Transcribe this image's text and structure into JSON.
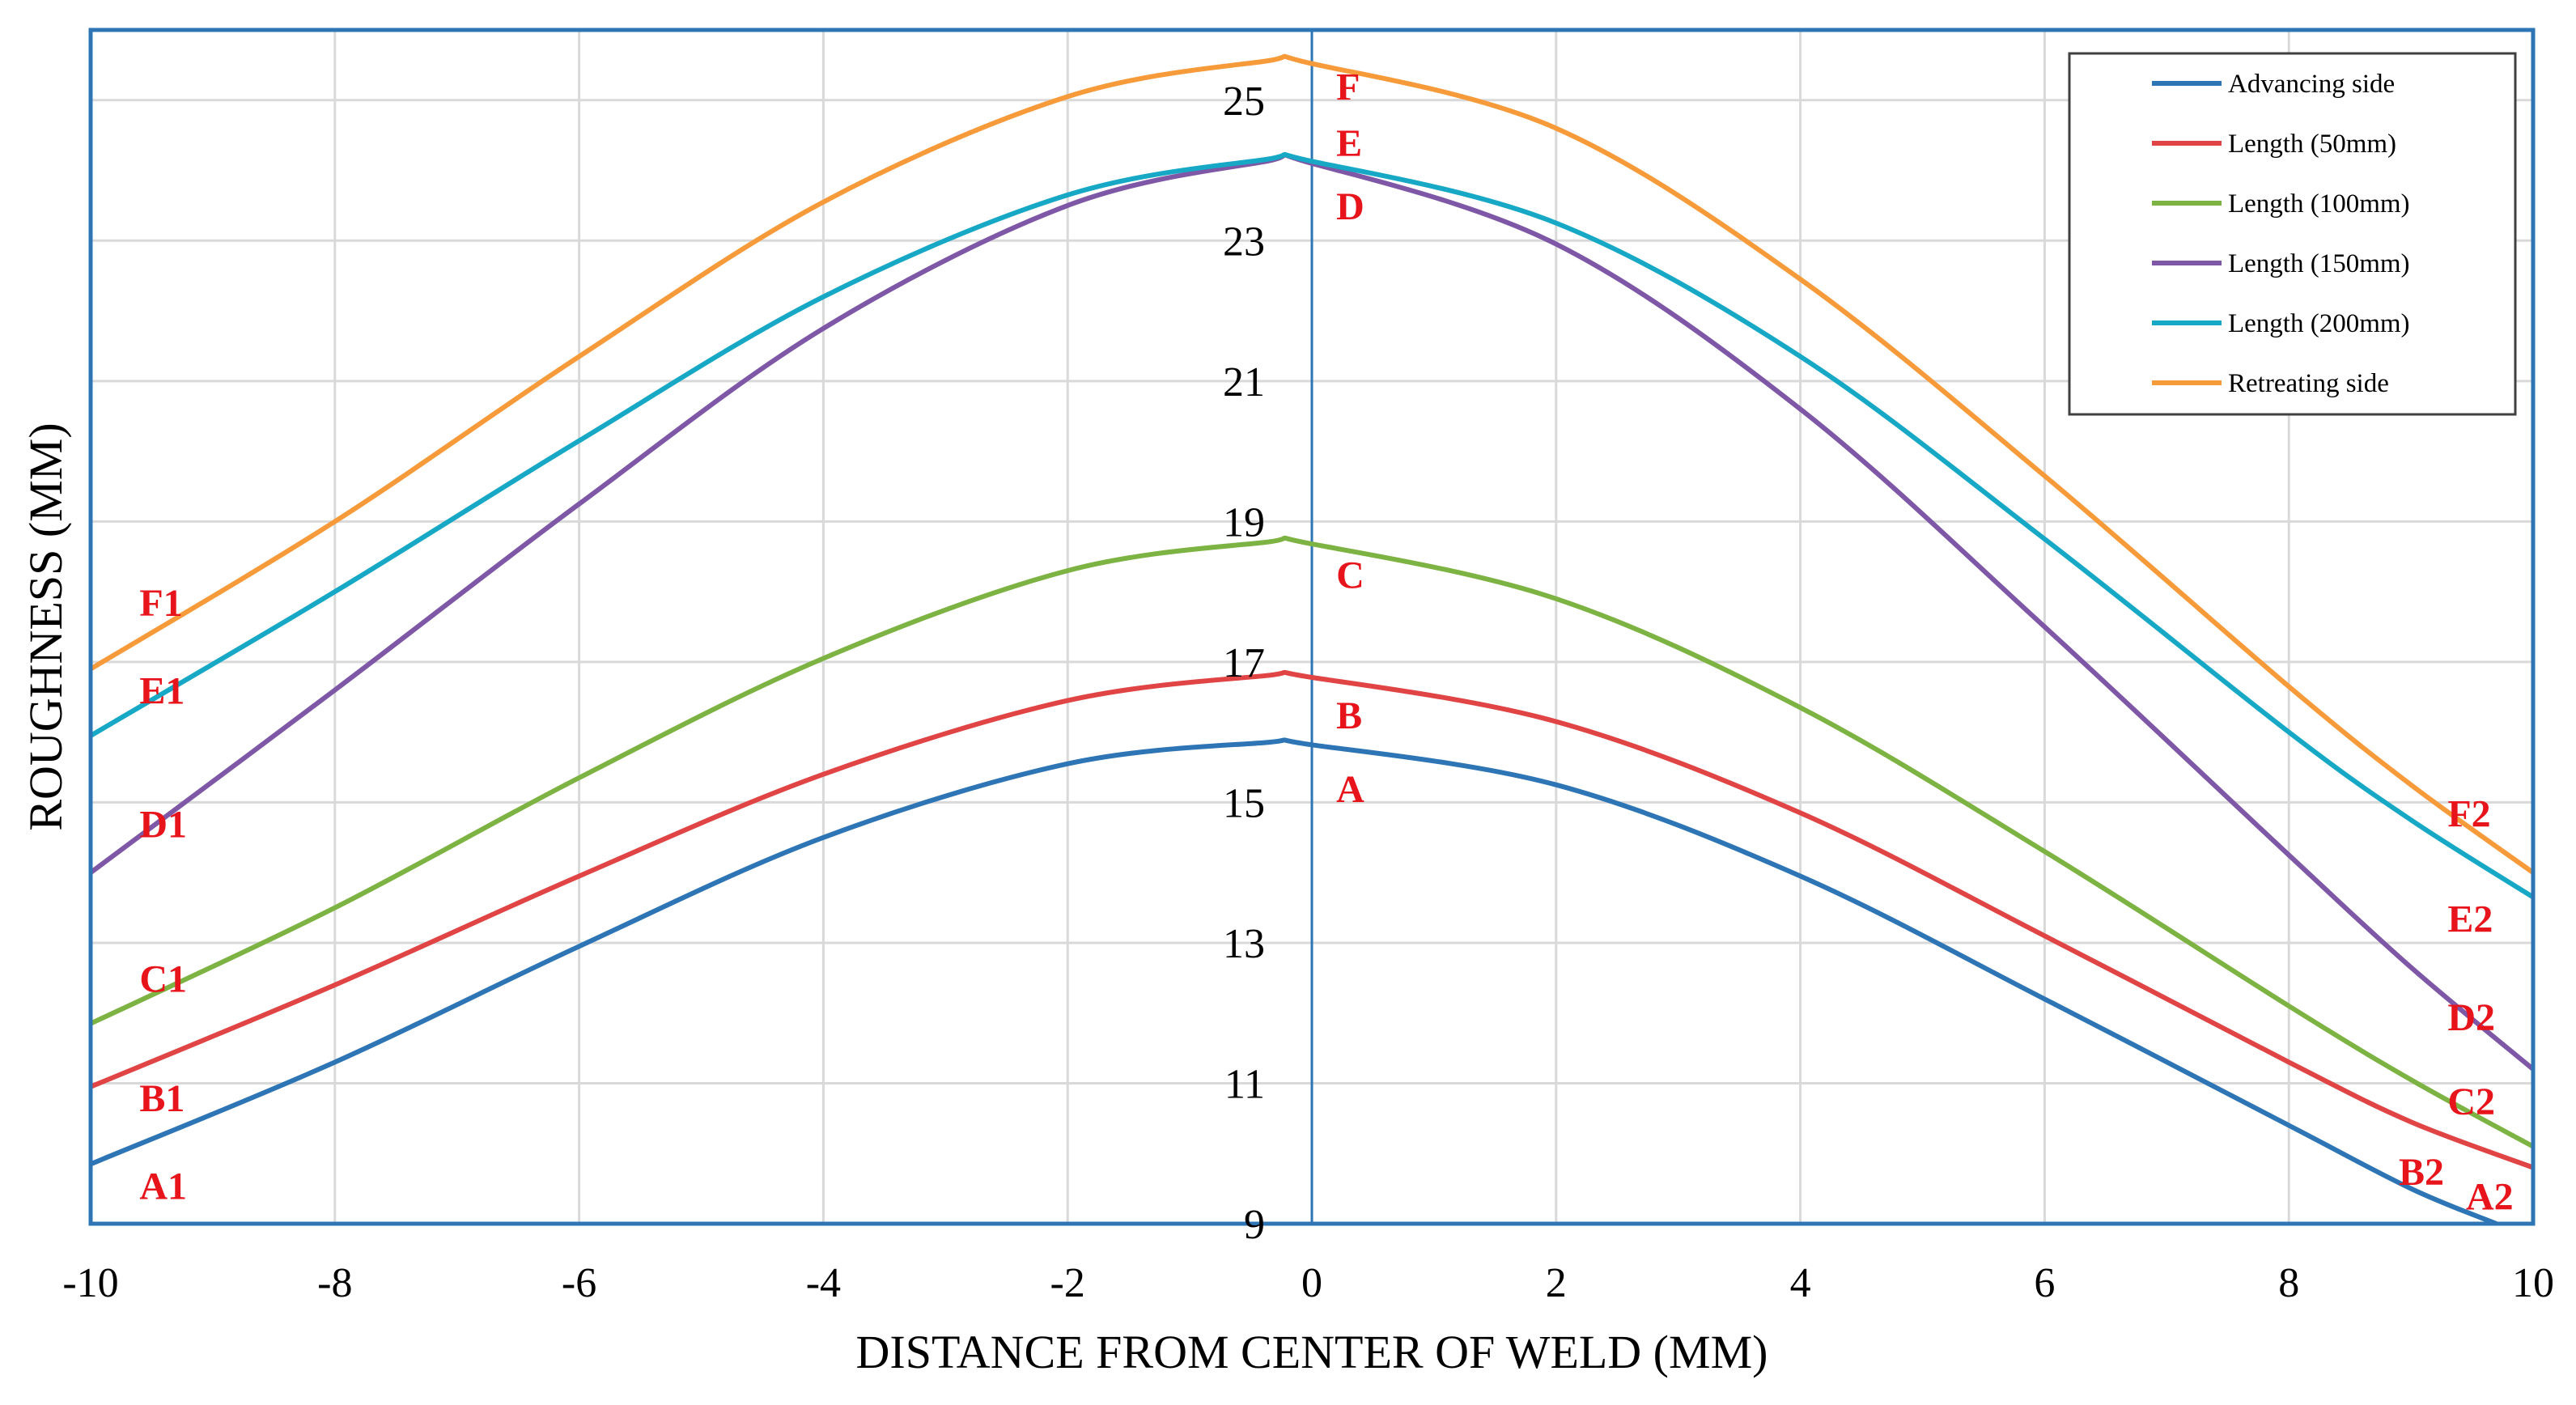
{
  "chart_data": {
    "type": "line",
    "title": "",
    "xlabel": "DISTANCE FROM CENTER OF WELD (MM)",
    "ylabel": "ROUGHNESS (MM)",
    "xlim": [
      -10,
      10
    ],
    "ylim": [
      9,
      26
    ],
    "xticks": [
      -10,
      -8,
      -6,
      -4,
      -2,
      0,
      2,
      4,
      6,
      8,
      10
    ],
    "yticks": [
      9,
      11,
      13,
      15,
      17,
      19,
      21,
      23,
      25
    ],
    "grid": true,
    "legend_position": "top-right",
    "series": [
      {
        "name": "Advancing side",
        "color": "#2E75B6",
        "x": [
          -10,
          -8,
          -6,
          -4,
          -2,
          -0.4,
          0,
          2,
          4,
          6,
          8,
          9,
          9.7
        ],
        "y": [
          9.85,
          11.3,
          12.95,
          14.5,
          15.55,
          15.85,
          15.82,
          15.25,
          13.95,
          12.2,
          10.4,
          9.5,
          9.0
        ]
      },
      {
        "name": "Length (50mm)",
        "color": "#E04444",
        "x": [
          -10,
          -8,
          -6,
          -4,
          -2,
          -0.4,
          0,
          2,
          4,
          6,
          8,
          9,
          10
        ],
        "y": [
          10.95,
          12.4,
          13.95,
          15.4,
          16.45,
          16.8,
          16.78,
          16.15,
          14.85,
          13.1,
          11.3,
          10.45,
          9.8
        ]
      },
      {
        "name": "Length (100mm)",
        "color": "#7CB342",
        "x": [
          -10,
          -8,
          -6,
          -4,
          -2,
          -0.4,
          0,
          2,
          4,
          6,
          8,
          9,
          10
        ],
        "y": [
          11.85,
          13.5,
          15.35,
          17.05,
          18.3,
          18.7,
          18.68,
          17.9,
          16.35,
          14.3,
          12.1,
          11.05,
          10.1
        ]
      },
      {
        "name": "Length (150mm)",
        "color": "#7E57A6",
        "x": [
          -10,
          -8,
          -6,
          -4,
          -2,
          -0.4,
          0,
          2,
          4,
          6,
          8,
          9,
          10
        ],
        "y": [
          14.0,
          16.6,
          19.25,
          21.75,
          23.5,
          24.12,
          24.1,
          22.95,
          20.6,
          17.5,
          14.25,
          12.65,
          11.2
        ]
      },
      {
        "name": "Length (200mm)",
        "color": "#17A8C6",
        "x": [
          -10,
          -8,
          -6,
          -4,
          -2,
          -0.4,
          0,
          2,
          4,
          6,
          8,
          9,
          10
        ],
        "y": [
          15.95,
          18.0,
          20.15,
          22.2,
          23.65,
          24.15,
          24.13,
          23.25,
          21.35,
          18.75,
          16.0,
          14.75,
          13.65
        ]
      },
      {
        "name": "Retreating side",
        "color": "#F79A3A",
        "x": [
          -10,
          -8,
          -6,
          -4,
          -2,
          -0.4,
          0,
          2,
          4,
          6,
          8,
          9,
          10
        ],
        "y": [
          16.9,
          19.0,
          21.35,
          23.55,
          25.05,
          25.55,
          25.52,
          24.6,
          22.45,
          19.65,
          16.65,
          15.25,
          14.0
        ]
      }
    ],
    "annotations": [
      {
        "text": "F",
        "x": 0.2,
        "y": 25.2
      },
      {
        "text": "E",
        "x": 0.2,
        "y": 24.4
      },
      {
        "text": "D",
        "x": 0.2,
        "y": 23.5
      },
      {
        "text": "C",
        "x": 0.2,
        "y": 18.25
      },
      {
        "text": "B",
        "x": 0.2,
        "y": 16.25
      },
      {
        "text": "A",
        "x": 0.2,
        "y": 15.2
      },
      {
        "text": "F1",
        "x": -9.6,
        "y": 17.85
      },
      {
        "text": "E1",
        "x": -9.6,
        "y": 16.6
      },
      {
        "text": "D1",
        "x": -9.6,
        "y": 14.7
      },
      {
        "text": "C1",
        "x": -9.6,
        "y": 12.5
      },
      {
        "text": "B1",
        "x": -9.6,
        "y": 10.8
      },
      {
        "text": "A1",
        "x": -9.6,
        "y": 9.55
      },
      {
        "text": "F2",
        "x": 9.3,
        "y": 14.85
      },
      {
        "text": "E2",
        "x": 9.3,
        "y": 13.35
      },
      {
        "text": "D2",
        "x": 9.3,
        "y": 11.95
      },
      {
        "text": "C2",
        "x": 9.3,
        "y": 10.75
      },
      {
        "text": "B2",
        "x": 8.9,
        "y": 9.75
      },
      {
        "text": "A2",
        "x": 9.45,
        "y": 9.4
      }
    ]
  }
}
